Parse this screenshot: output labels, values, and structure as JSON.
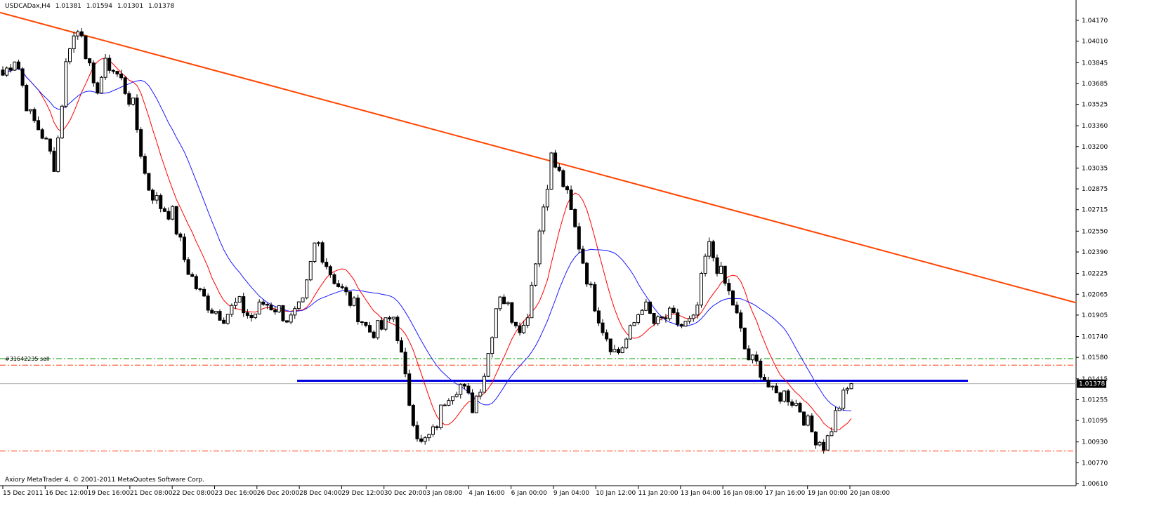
{
  "header": {
    "symbol_tf": "USDCADax,H4",
    "open": "1.01381",
    "high": "1.01594",
    "low": "1.01301",
    "close": "1.01378"
  },
  "footer": "Axiory MetaTrader 4, © 2001-2011 MetaQuotes Software Corp.",
  "colors": {
    "background": "#ffffff",
    "bull_candle": "#ffffff",
    "bear_candle": "#000000",
    "trendline": "#ff4500",
    "support_line": "#0000e0",
    "ma_fast": "#ff0000",
    "ma_slow": "#1a1aff",
    "tp_line": "#009900",
    "sl_line": "#ff3300"
  },
  "chart_data": {
    "type": "candlestick",
    "ylim": [
      1.0605,
      1.0425
    ],
    "y_ticks": [
      "1.04170",
      "1.04010",
      "1.03845",
      "1.03685",
      "1.03525",
      "1.03360",
      "1.03200",
      "1.03035",
      "1.02875",
      "1.02715",
      "1.02550",
      "1.02390",
      "1.02225",
      "1.02065",
      "1.01905",
      "1.01740",
      "1.01580",
      "1.01415",
      "1.01255",
      "1.01095",
      "1.00930",
      "1.00770",
      "1.00610"
    ],
    "x_ticks": [
      "15 Dec 2011",
      "16 Dec 12:00",
      "19 Dec 16:00",
      "21 Dec 08:00",
      "22 Dec 08:00",
      "23 Dec 16:00",
      "26 Dec 20:00",
      "28 Dec 04:00",
      "29 Dec 12:00",
      "30 Dec 20:00",
      "3 Jan 08:00",
      "4 Jan 16:00",
      "6 Jan 00:00",
      "9 Jan 04:00",
      "10 Jan 12:00",
      "11 Jan 20:00",
      "13 Jan 04:00",
      "16 Jan 08:00",
      "17 Jan 16:00",
      "19 Jan 00:00",
      "20 Jan 08:00"
    ],
    "current_price": "1.01378",
    "order_label": "#31642235 sell",
    "levels": {
      "take_profit": 1.0157,
      "entry": 1.0152,
      "stop_loss": 1.0086,
      "support": 1.014,
      "current": 1.01378
    },
    "trendline": {
      "from": 1.0423,
      "to": 1.02
    },
    "waypoints": [
      1.0375,
      1.039,
      1.0345,
      1.033,
      1.0305,
      1.0398,
      1.0412,
      1.036,
      1.0385,
      1.0372,
      1.035,
      1.0292,
      1.0275,
      1.0268,
      1.023,
      1.0208,
      1.0196,
      1.019,
      1.02,
      1.0188,
      1.02,
      1.0196,
      1.0186,
      1.0198,
      1.025,
      1.0225,
      1.0209,
      1.0196,
      1.0178,
      1.018,
      1.019,
      1.013,
      1.009,
      1.01,
      1.013,
      1.0138,
      1.012,
      1.015,
      1.021,
      1.019,
      1.018,
      1.0248,
      1.0312,
      1.029,
      1.025,
      1.021,
      1.018,
      1.016,
      1.0175,
      1.02,
      1.0182,
      1.019,
      1.0182,
      1.0185,
      1.0245,
      1.0222,
      1.0198,
      1.0158,
      1.015,
      1.0128,
      1.013,
      1.012,
      1.01,
      1.009,
      1.012,
      1.0138
    ],
    "wick_high": 0.00035,
    "wick_low": 0.00032,
    "ma_fast_period": 10,
    "ma_slow_period": 22
  }
}
